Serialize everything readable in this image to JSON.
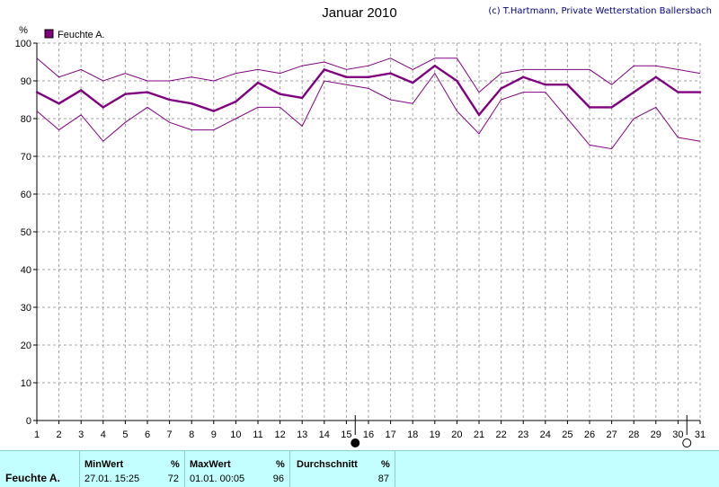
{
  "title": "Januar 2010",
  "credit": "(c) T.Hartmann, Private Wetterstation Ballersbach",
  "y_unit": "%",
  "colors": {
    "series": "#800080",
    "grid": "#a0a0a0",
    "stats_bg": "#c4ffff"
  },
  "chart_data": {
    "type": "line",
    "xlim": [
      1,
      31
    ],
    "ylim": [
      0,
      100
    ],
    "grid": true,
    "legend": "top-left",
    "x": [
      1,
      2,
      3,
      4,
      5,
      6,
      7,
      8,
      9,
      10,
      11,
      12,
      13,
      14,
      15,
      16,
      17,
      18,
      19,
      20,
      21,
      22,
      23,
      24,
      25,
      26,
      27,
      28,
      29,
      30,
      31
    ],
    "x_ticks": [
      1,
      2,
      3,
      4,
      5,
      6,
      7,
      8,
      9,
      10,
      11,
      12,
      13,
      14,
      15,
      16,
      17,
      18,
      19,
      20,
      21,
      22,
      23,
      24,
      25,
      26,
      27,
      28,
      29,
      30,
      31
    ],
    "y_ticks": [
      0,
      10,
      20,
      30,
      40,
      50,
      60,
      70,
      80,
      90,
      100
    ],
    "series": [
      {
        "name": "Feuchte A.",
        "values": [
          87,
          84,
          87.5,
          83,
          86.5,
          87,
          85,
          84,
          82,
          84.5,
          89.5,
          86.5,
          85.5,
          93,
          91,
          91,
          92,
          89.5,
          94,
          90,
          81,
          88,
          91,
          89,
          89,
          83,
          83,
          87,
          91,
          87,
          87
        ]
      }
    ],
    "series_max": [
      96,
      91,
      93,
      90,
      92,
      90,
      90,
      91,
      90,
      92,
      93,
      92,
      94,
      95,
      93,
      94,
      96,
      93,
      96,
      96,
      87,
      92,
      93,
      93,
      93,
      93,
      89,
      94,
      94,
      93,
      92
    ],
    "series_min": [
      82,
      77,
      81,
      74,
      79,
      83,
      79,
      77,
      77,
      80,
      83,
      83,
      78,
      90,
      89,
      88,
      85,
      84,
      92,
      82,
      76,
      85,
      87,
      87,
      80,
      73,
      72,
      80,
      83,
      75,
      74
    ],
    "markers": [
      {
        "x": 15.4,
        "symbol": "full-moon"
      },
      {
        "x": 30.4,
        "symbol": "new-moon"
      }
    ]
  },
  "stats": {
    "row_label": "Feuchte A.",
    "min_header": "MinWert",
    "min_unit": "%",
    "min_time": "27.01.  15:25",
    "min_value": "72",
    "max_header": "MaxWert",
    "max_unit": "%",
    "max_time": "01.01.  00:05",
    "max_value": "96",
    "avg_header": "Durchschnitt",
    "avg_unit": "%",
    "avg_value": "87"
  }
}
